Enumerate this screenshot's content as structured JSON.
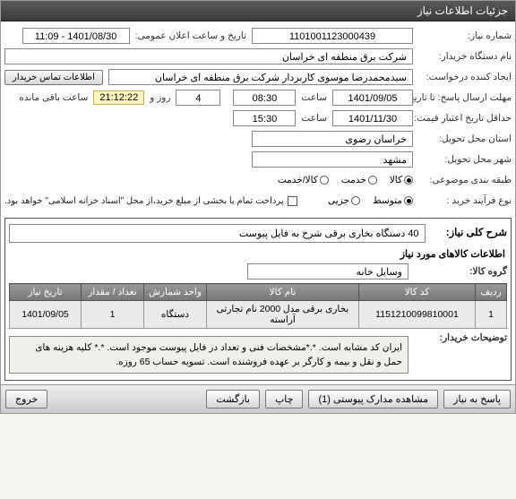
{
  "title": "جزئیات اطلاعات نیاز",
  "labels": {
    "need_no": "شماره نیاز:",
    "buyer": "نام دستگاه خریدار:",
    "requester": "ایجاد کننده درخواست:",
    "deadline": "مهلت ارسال پاسخ: تا تاریخ:",
    "validity": "حداقل تاریخ اعتبار قیمت: تا تاریخ:",
    "province": "استان محل تحویل:",
    "city": "شهر محل تحویل:",
    "category": "طبقه بندی موضوعی:",
    "process": "نوع فرآیند خرید :",
    "announce": "تاریخ و ساعت اعلان عمومی:",
    "hour": "ساعت",
    "day": "روز و",
    "remain": "ساعت باقی مانده",
    "contact_btn": "اطلاعات تماس خریدار",
    "desc_title": "شرح کلی نیاز:",
    "goods_title": "اطلاعات کالاهای مورد نیاز",
    "group": "گروه کالا:",
    "buyer_notes_lbl": "توضیحات خریدار:"
  },
  "values": {
    "need_no": "1101001123000439",
    "buyer": "شرکت برق منطقه ای خراسان",
    "requester": "سیدمحمدرضا موسوی کاربردار شرکت برق منطقه ای خراسان",
    "deadline_date": "1401/09/05",
    "deadline_time": "08:30",
    "deadline_days": "4",
    "countdown": "21:12:22",
    "validity_date": "1401/11/30",
    "validity_time": "15:30",
    "province": "خراسان رضوی",
    "city": "مشهد",
    "announce": "1401/08/30 - 11:09",
    "desc": "40 دستگاه بخاری برقی شرح به فایل پیوست",
    "group": "وسایل خانه",
    "buyer_notes": "ایران کد مشابه است. *.*مشخصات فنی و تعداد در فایل پیوست موجود است. *.* کلیه هزینه های حمل و نقل و بیمه و کارگر بر عهده فروشنده است. تسویه حساب 65 روزه."
  },
  "category_opts": [
    {
      "label": "کالا",
      "on": true
    },
    {
      "label": "خدمت",
      "on": false
    },
    {
      "label": "کالا/خدمت",
      "on": false
    }
  ],
  "process_opts": [
    {
      "label": "متوسط",
      "on": true
    },
    {
      "label": "جزیی",
      "on": false
    }
  ],
  "process_note": "پرداخت تمام یا بخشی از مبلغ خرید،از محل \"اسناد خزانه اسلامی\" خواهد بود.",
  "table": {
    "headers": [
      "ردیف",
      "کد کالا",
      "نام کالا",
      "واحد شمارش",
      "تعداد / مقدار",
      "تاریخ نیاز"
    ],
    "row": [
      "1",
      "1151210099810001",
      "بخاری برقی مدل 2000 نام تجارتی آراسته",
      "دستگاه",
      "1",
      "1401/09/05"
    ]
  },
  "footer_btns": [
    "پاسخ به نیاز",
    "مشاهده مدارک پیوستی (1)",
    "چاپ",
    "بازگشت",
    "خروج"
  ]
}
